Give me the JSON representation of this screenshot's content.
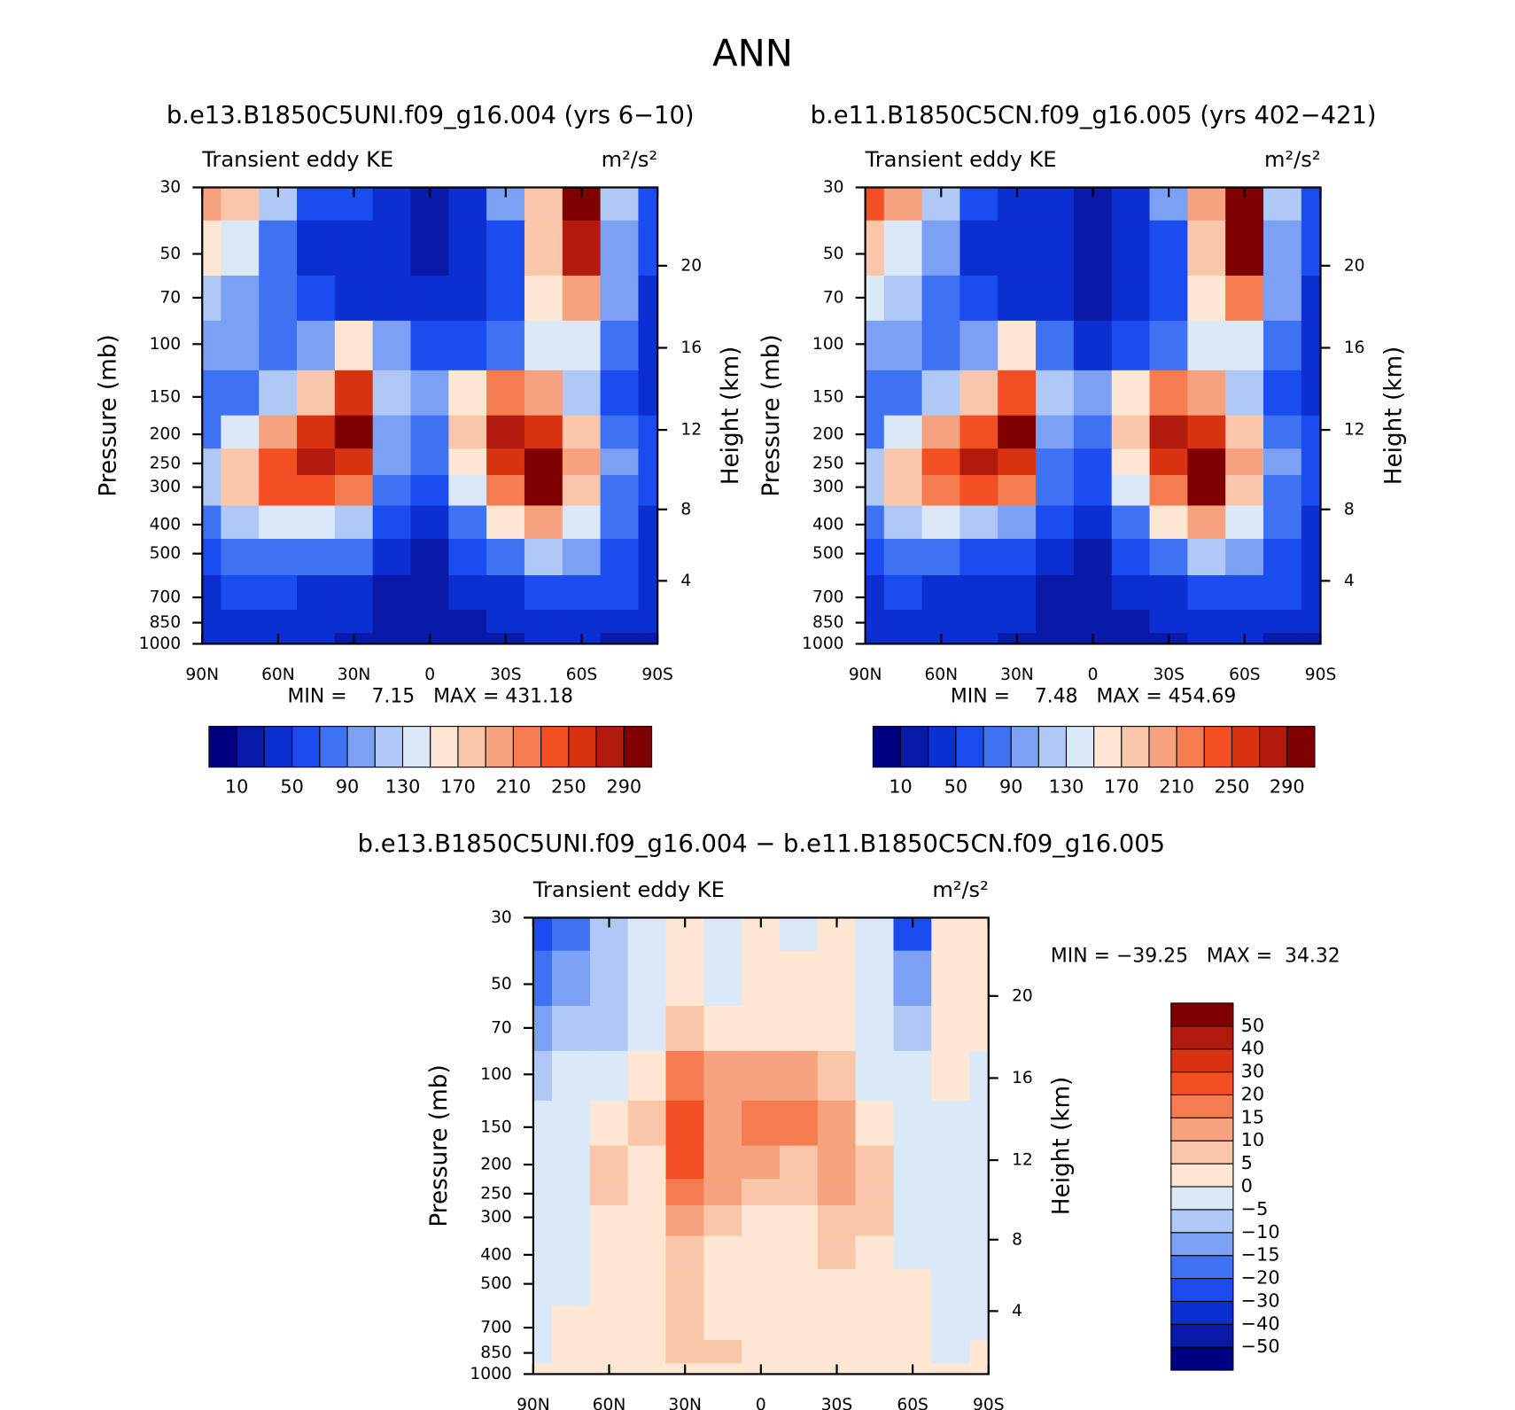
{
  "title": "ANN",
  "chart_data": [
    {
      "type": "contour",
      "title": "b.e13.B1850C5UNI.f09_g16.004 (yrs 6−10)",
      "left_label": "Transient eddy KE",
      "right_label": "m²/s²",
      "ylabel": "Pressure (mb)",
      "y2label": "Height (km)",
      "stats": "MIN =    7.15   MAX = 431.18",
      "colorbar": "horizontal",
      "x": [
        90,
        75,
        60,
        45,
        30,
        15,
        0,
        -15,
        -30,
        -45,
        -60,
        -75,
        -90
      ],
      "y": [
        30,
        50,
        70,
        100,
        150,
        200,
        250,
        300,
        400,
        500,
        700,
        850,
        1000
      ],
      "z": [
        [
          200,
          170,
          110,
          50,
          50,
          30,
          20,
          40,
          90,
          180,
          320,
          120,
          60
        ],
        [
          150,
          130,
          80,
          40,
          40,
          30,
          20,
          30,
          60,
          170,
          280,
          100,
          50
        ],
        [
          120,
          100,
          80,
          50,
          40,
          40,
          30,
          40,
          50,
          150,
          200,
          90,
          40
        ],
        [
          90,
          90,
          70,
          100,
          160,
          90,
          50,
          60,
          80,
          130,
          130,
          70,
          30
        ],
        [
          70,
          80,
          110,
          180,
          250,
          120,
          100,
          150,
          220,
          200,
          120,
          60,
          40
        ],
        [
          80,
          130,
          200,
          250,
          290,
          100,
          80,
          170,
          270,
          260,
          170,
          80,
          50
        ],
        [
          110,
          170,
          240,
          270,
          260,
          90,
          70,
          160,
          260,
          290,
          190,
          90,
          50
        ],
        [
          110,
          170,
          230,
          240,
          210,
          80,
          60,
          130,
          220,
          290,
          180,
          80,
          50
        ],
        [
          80,
          110,
          130,
          130,
          110,
          60,
          40,
          80,
          150,
          190,
          130,
          70,
          40
        ],
        [
          60,
          70,
          70,
          70,
          70,
          40,
          25,
          50,
          80,
          120,
          90,
          60,
          40
        ],
        [
          40,
          50,
          50,
          40,
          40,
          20,
          15,
          30,
          40,
          60,
          60,
          50,
          30
        ],
        [
          30,
          40,
          40,
          30,
          30,
          20,
          15,
          20,
          30,
          40,
          40,
          40,
          30
        ],
        [
          30,
          30,
          30,
          30,
          25,
          15,
          15,
          20,
          25,
          30,
          30,
          20,
          20
        ]
      ],
      "xlim": [
        90,
        -90
      ],
      "xticks": [
        {
          "value": 90,
          "label": "90N"
        },
        {
          "value": 60,
          "label": "60N"
        },
        {
          "value": 30,
          "label": "30N"
        },
        0,
        {
          "value": -30,
          "label": "30S"
        },
        {
          "value": -60,
          "label": "60S"
        },
        {
          "value": -90,
          "label": "90S"
        }
      ],
      "ylim": [
        30,
        1000
      ],
      "yticks": [
        30,
        50,
        70,
        100,
        150,
        200,
        250,
        300,
        400,
        500,
        700,
        850,
        1000
      ],
      "log_y": true,
      "y2ticks": [
        4,
        8,
        12,
        16,
        20
      ],
      "levels": [
        10,
        30,
        50,
        70,
        90,
        110,
        130,
        150,
        170,
        190,
        210,
        230,
        250,
        270,
        290
      ],
      "colors": [
        "#000080",
        "#0a1aa8",
        "#0c2fd2",
        "#1a4cf0",
        "#3f72f2",
        "#7ba0f4",
        "#afc8f6",
        "#dbe8f8",
        "#fde6d2",
        "#f9c6a9",
        "#f6a27e",
        "#f57b50",
        "#f24f22",
        "#d83210",
        "#b11a0c",
        "#7f0000"
      ],
      "colorbar_ticks": [
        10,
        50,
        90,
        130,
        170,
        210,
        250,
        290
      ]
    },
    {
      "type": "contour",
      "title": "b.e11.B1850C5CN.f09_g16.005 (yrs 402−421)",
      "left_label": "Transient eddy KE",
      "right_label": "m²/s²",
      "ylabel": "Pressure (mb)",
      "y2label": "Height (km)",
      "stats": "MIN =    7.48   MAX = 454.69",
      "colorbar": "horizontal",
      "x": [
        90,
        75,
        60,
        45,
        30,
        15,
        0,
        -15,
        -30,
        -45,
        -60,
        -75,
        -90
      ],
      "y": [
        30,
        50,
        70,
        100,
        150,
        200,
        250,
        300,
        400,
        500,
        700,
        850,
        1000
      ],
      "z": [
        [
          230,
          190,
          120,
          50,
          45,
          30,
          10,
          40,
          90,
          190,
          340,
          120,
          60
        ],
        [
          170,
          140,
          90,
          40,
          40,
          30,
          15,
          30,
          60,
          180,
          300,
          100,
          50
        ],
        [
          130,
          110,
          80,
          50,
          40,
          40,
          25,
          40,
          50,
          160,
          220,
          90,
          40
        ],
        [
          90,
          90,
          70,
          100,
          150,
          80,
          45,
          60,
          80,
          140,
          140,
          70,
          30
        ],
        [
          70,
          80,
          110,
          170,
          240,
          110,
          90,
          150,
          220,
          200,
          120,
          60,
          40
        ],
        [
          80,
          130,
          190,
          240,
          290,
          95,
          75,
          170,
          270,
          260,
          170,
          80,
          50
        ],
        [
          110,
          170,
          230,
          270,
          260,
          85,
          65,
          160,
          260,
          300,
          190,
          90,
          50
        ],
        [
          110,
          170,
          220,
          240,
          210,
          75,
          55,
          130,
          220,
          290,
          180,
          80,
          50
        ],
        [
          80,
          110,
          130,
          120,
          100,
          55,
          35,
          80,
          150,
          190,
          130,
          70,
          40
        ],
        [
          60,
          70,
          70,
          65,
          60,
          35,
          20,
          50,
          80,
          120,
          90,
          60,
          40
        ],
        [
          40,
          50,
          45,
          40,
          35,
          20,
          12,
          30,
          40,
          60,
          60,
          50,
          30
        ],
        [
          30,
          40,
          35,
          30,
          30,
          20,
          12,
          20,
          30,
          40,
          40,
          40,
          30
        ],
        [
          30,
          30,
          30,
          30,
          25,
          15,
          12,
          20,
          25,
          30,
          30,
          20,
          20
        ]
      ],
      "xlim": [
        90,
        -90
      ],
      "xticks": [
        {
          "value": 90,
          "label": "90N"
        },
        {
          "value": 60,
          "label": "60N"
        },
        {
          "value": 30,
          "label": "30N"
        },
        0,
        {
          "value": -30,
          "label": "30S"
        },
        {
          "value": -60,
          "label": "60S"
        },
        {
          "value": -90,
          "label": "90S"
        }
      ],
      "ylim": [
        30,
        1000
      ],
      "yticks": [
        30,
        50,
        70,
        100,
        150,
        200,
        250,
        300,
        400,
        500,
        700,
        850,
        1000
      ],
      "log_y": true,
      "y2ticks": [
        4,
        8,
        12,
        16,
        20
      ],
      "levels": [
        10,
        30,
        50,
        70,
        90,
        110,
        130,
        150,
        170,
        190,
        210,
        230,
        250,
        270,
        290
      ],
      "colors": [
        "#000080",
        "#0a1aa8",
        "#0c2fd2",
        "#1a4cf0",
        "#3f72f2",
        "#7ba0f4",
        "#afc8f6",
        "#dbe8f8",
        "#fde6d2",
        "#f9c6a9",
        "#f6a27e",
        "#f57b50",
        "#f24f22",
        "#d83210",
        "#b11a0c",
        "#7f0000"
      ],
      "colorbar_ticks": [
        10,
        50,
        90,
        130,
        170,
        210,
        250,
        290
      ]
    },
    {
      "type": "contour",
      "title": "b.e13.B1850C5UNI.f09_g16.004 − b.e11.B1850C5CN.f09_g16.005",
      "left_label": "Transient eddy KE",
      "right_label": "m²/s²",
      "ylabel": "Pressure (mb)",
      "y2label": "Height (km)",
      "stats": "MIN = −39.25   MAX =  34.32",
      "colorbar": "vertical",
      "x": [
        90,
        75,
        60,
        45,
        30,
        15,
        0,
        -15,
        -30,
        -45,
        -60,
        -75,
        -90
      ],
      "y": [
        30,
        50,
        70,
        100,
        150,
        200,
        250,
        300,
        400,
        500,
        700,
        850,
        1000
      ],
      "z": [
        [
          -25,
          -20,
          -10,
          -3,
          2,
          -3,
          2,
          -3,
          3,
          -5,
          -25,
          2,
          3
        ],
        [
          -20,
          -15,
          -8,
          -3,
          3,
          -3,
          2,
          2,
          3,
          -5,
          -15,
          3,
          3
        ],
        [
          -15,
          -10,
          -6,
          -2,
          8,
          4,
          3,
          3,
          4,
          -3,
          -8,
          2,
          2
        ],
        [
          -10,
          -5,
          -3,
          3,
          18,
          14,
          12,
          12,
          8,
          -2,
          -4,
          2,
          -2
        ],
        [
          -5,
          -2,
          2,
          6,
          22,
          14,
          18,
          18,
          14,
          4,
          -2,
          -2,
          -3
        ],
        [
          -3,
          -2,
          6,
          4,
          20,
          12,
          10,
          8,
          14,
          6,
          -2,
          -3,
          -2
        ],
        [
          -3,
          -2,
          6,
          4,
          18,
          10,
          6,
          5,
          12,
          8,
          -2,
          -3,
          -3
        ],
        [
          -3,
          -2,
          4,
          3,
          14,
          6,
          4,
          3,
          8,
          6,
          -2,
          -2,
          -3
        ],
        [
          -3,
          -2,
          3,
          2,
          8,
          3,
          2,
          3,
          5,
          4,
          -1,
          -2,
          -2
        ],
        [
          -2,
          -2,
          2,
          2,
          6,
          3,
          2,
          3,
          4,
          3,
          2,
          -2,
          -2
        ],
        [
          -2,
          2,
          3,
          3,
          5,
          4,
          3,
          3,
          4,
          4,
          2,
          -1,
          -1
        ],
        [
          -2,
          2,
          3,
          3,
          6,
          5,
          4,
          3,
          3,
          3,
          2,
          -2,
          2
        ],
        [
          2,
          2,
          2,
          3,
          4,
          3,
          3,
          3,
          2,
          2,
          2,
          2,
          2
        ]
      ],
      "xlim": [
        90,
        -90
      ],
      "xticks": [
        {
          "value": 90,
          "label": "90N"
        },
        {
          "value": 60,
          "label": "60N"
        },
        {
          "value": 30,
          "label": "30N"
        },
        0,
        {
          "value": -30,
          "label": "30S"
        },
        {
          "value": -60,
          "label": "60S"
        },
        {
          "value": -90,
          "label": "90S"
        }
      ],
      "ylim": [
        30,
        1000
      ],
      "yticks": [
        30,
        50,
        70,
        100,
        150,
        200,
        250,
        300,
        400,
        500,
        700,
        850,
        1000
      ],
      "log_y": true,
      "y2ticks": [
        4,
        8,
        12,
        16,
        20
      ],
      "levels": [
        -50,
        -40,
        -30,
        -20,
        -15,
        -10,
        -5,
        0,
        5,
        10,
        15,
        20,
        30,
        40,
        50
      ],
      "colors": [
        "#000080",
        "#0a1aa8",
        "#0c2fd2",
        "#1a4cf0",
        "#3f72f2",
        "#7ba0f4",
        "#afc8f6",
        "#dbe8f8",
        "#fde6d2",
        "#f9c6a9",
        "#f6a27e",
        "#f57b50",
        "#f24f22",
        "#d83210",
        "#b11a0c",
        "#7f0000"
      ],
      "colorbar_ticks": [
        {
          "value": -50,
          "label": "−50"
        },
        {
          "value": -40,
          "label": "−40"
        },
        {
          "value": -30,
          "label": "−30"
        },
        {
          "value": -20,
          "label": "−20"
        },
        {
          "value": -15,
          "label": "−15"
        },
        {
          "value": -10,
          "label": "−10"
        },
        {
          "value": -5,
          "label": "−5"
        },
        0,
        5,
        10,
        15,
        20,
        30,
        40,
        50
      ]
    }
  ]
}
